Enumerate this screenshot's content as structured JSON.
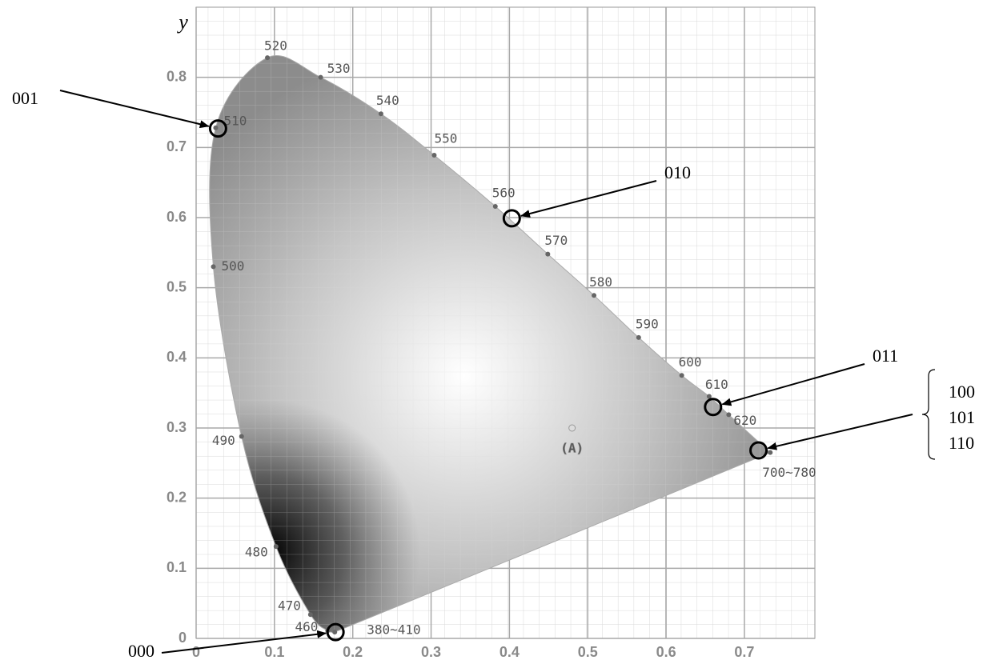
{
  "chart_data": {
    "type": "scatter",
    "y_label": "y",
    "xlim": [
      0,
      0.79
    ],
    "ylim": [
      0,
      0.9
    ],
    "xticks": [
      0,
      0.1,
      0.2,
      0.3,
      0.4,
      0.5,
      0.6,
      0.7
    ],
    "yticks": [
      0,
      0.1,
      0.2,
      0.3,
      0.4,
      0.5,
      0.6,
      0.7,
      0.8
    ],
    "grid": true,
    "locus": {
      "labels": [
        "380~410",
        "460",
        "470",
        "480",
        "490",
        "500",
        "510",
        "520",
        "530",
        "540",
        "550",
        "560",
        "570",
        "580",
        "590",
        "600",
        "610",
        "620",
        "700~780"
      ],
      "x": [
        0.177,
        0.168,
        0.146,
        0.102,
        0.058,
        0.022,
        0.025,
        0.091,
        0.159,
        0.236,
        0.304,
        0.382,
        0.449,
        0.508,
        0.565,
        0.62,
        0.655,
        0.68,
        0.733
      ],
      "y": [
        0.009,
        0.011,
        0.034,
        0.131,
        0.288,
        0.53,
        0.728,
        0.828,
        0.8,
        0.748,
        0.689,
        0.616,
        0.548,
        0.489,
        0.429,
        0.375,
        0.345,
        0.319,
        0.265
      ]
    },
    "illuminant": {
      "label": "(A)",
      "x": 0.48,
      "y": 0.3
    },
    "markers": [
      {
        "codes": [
          "001"
        ],
        "x": 0.028,
        "y": 0.727
      },
      {
        "codes": [
          "010"
        ],
        "x": 0.403,
        "y": 0.599
      },
      {
        "codes": [
          "011"
        ],
        "x": 0.66,
        "y": 0.33
      },
      {
        "codes": [
          "100",
          "101",
          "110"
        ],
        "x": 0.718,
        "y": 0.268
      },
      {
        "codes": [
          "000"
        ],
        "x": 0.178,
        "y": 0.009
      }
    ]
  }
}
